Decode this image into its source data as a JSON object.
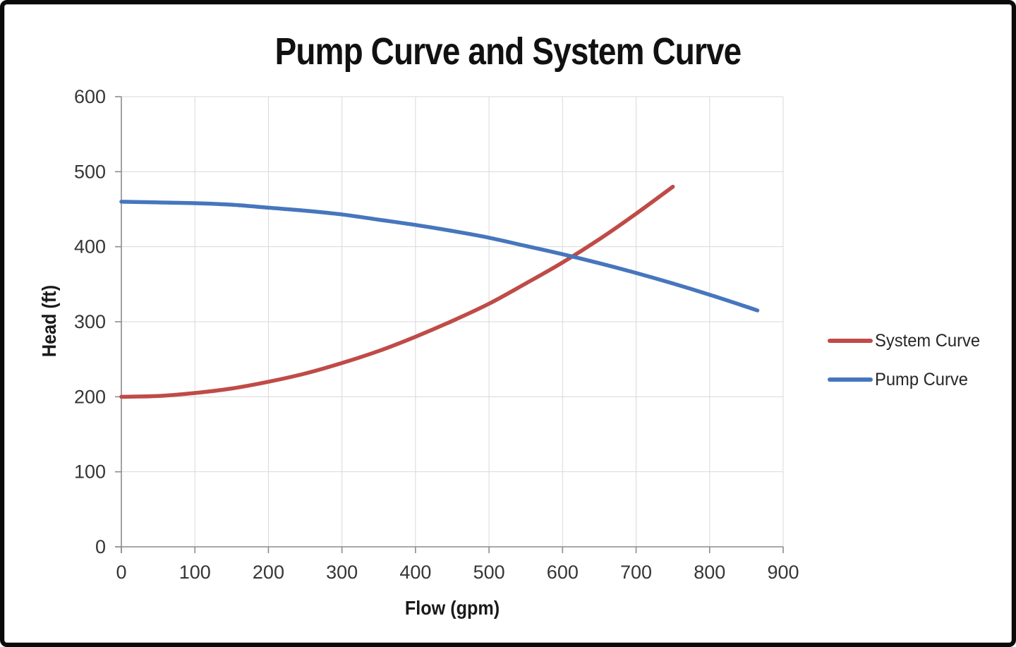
{
  "chart_data": {
    "type": "line",
    "title": "Pump Curve and System Curve",
    "xlabel": "Flow (gpm)",
    "ylabel": "Head (ft)",
    "xlim": [
      0,
      900
    ],
    "ylim": [
      0,
      600
    ],
    "x_ticks": [
      0,
      100,
      200,
      300,
      400,
      500,
      600,
      700,
      800,
      900
    ],
    "y_ticks": [
      0,
      100,
      200,
      300,
      400,
      500,
      600
    ],
    "grid": true,
    "legend_position": "right",
    "grid_color": "#d9d9d9",
    "axis_color": "#8c8c8c",
    "tick_label_color": "#363636",
    "series": [
      {
        "name": "System Curve",
        "color": "#BF4B47",
        "points": [
          [
            0,
            200
          ],
          [
            50,
            201
          ],
          [
            100,
            205
          ],
          [
            150,
            211
          ],
          [
            200,
            220
          ],
          [
            250,
            231
          ],
          [
            300,
            245
          ],
          [
            350,
            261
          ],
          [
            400,
            280
          ],
          [
            450,
            301
          ],
          [
            500,
            324
          ],
          [
            550,
            351
          ],
          [
            600,
            379
          ],
          [
            650,
            410
          ],
          [
            700,
            444
          ],
          [
            750,
            480
          ]
        ]
      },
      {
        "name": "Pump Curve",
        "color": "#4676BD",
        "points": [
          [
            0,
            460
          ],
          [
            50,
            459
          ],
          [
            100,
            458
          ],
          [
            150,
            456
          ],
          [
            200,
            452
          ],
          [
            250,
            448
          ],
          [
            300,
            443
          ],
          [
            350,
            436
          ],
          [
            400,
            429
          ],
          [
            450,
            421
          ],
          [
            500,
            412
          ],
          [
            550,
            401
          ],
          [
            600,
            390
          ],
          [
            650,
            378
          ],
          [
            700,
            365
          ],
          [
            750,
            351
          ],
          [
            800,
            336
          ],
          [
            850,
            320
          ],
          [
            865,
            315
          ]
        ]
      }
    ]
  }
}
